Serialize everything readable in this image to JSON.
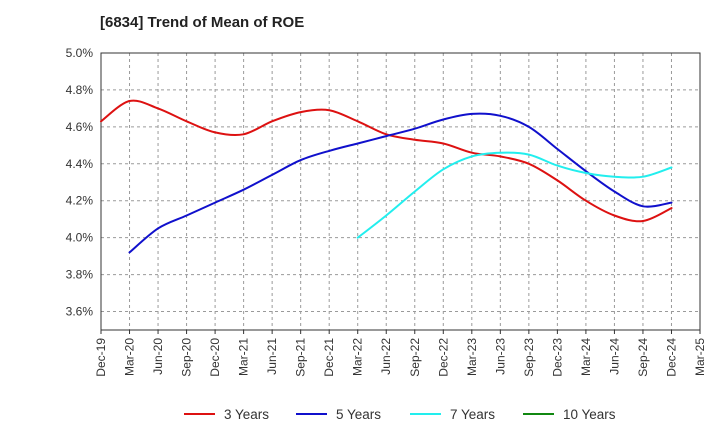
{
  "chart_data": {
    "type": "line",
    "title": "[6834]  Trend of Mean of ROE",
    "xlabel": "",
    "ylabel": "",
    "x_ticks": [
      "Dec-19",
      "Mar-20",
      "Jun-20",
      "Sep-20",
      "Dec-20",
      "Mar-21",
      "Jun-21",
      "Sep-21",
      "Dec-21",
      "Mar-22",
      "Jun-22",
      "Sep-22",
      "Dec-22",
      "Mar-23",
      "Jun-23",
      "Sep-23",
      "Dec-23",
      "Mar-24",
      "Jun-24",
      "Sep-24",
      "Dec-24",
      "Mar-25"
    ],
    "y_ticks": [
      "3.6%",
      "3.8%",
      "4.0%",
      "4.2%",
      "4.4%",
      "4.6%",
      "4.8%",
      "5.0%"
    ],
    "ylim": [
      3.5,
      5.0
    ],
    "grid": true,
    "legend_position": "bottom",
    "series": [
      {
        "name": "3 Years",
        "color": "#dd1111",
        "x": [
          "Dec-19",
          "Mar-20",
          "Jun-20",
          "Sep-20",
          "Dec-20",
          "Mar-21",
          "Jun-21",
          "Sep-21",
          "Dec-21",
          "Mar-22",
          "Jun-22",
          "Sep-22",
          "Dec-22",
          "Mar-23",
          "Jun-23",
          "Sep-23",
          "Dec-23",
          "Mar-24",
          "Jun-24",
          "Sep-24",
          "Dec-24"
        ],
        "values": [
          4.63,
          4.74,
          4.7,
          4.63,
          4.57,
          4.56,
          4.63,
          4.68,
          4.69,
          4.63,
          4.56,
          4.53,
          4.51,
          4.46,
          4.44,
          4.4,
          4.31,
          4.2,
          4.12,
          4.09,
          4.16
        ]
      },
      {
        "name": "5 Years",
        "color": "#1010cc",
        "x": [
          "Mar-20",
          "Jun-20",
          "Sep-20",
          "Dec-20",
          "Mar-21",
          "Jun-21",
          "Sep-21",
          "Dec-21",
          "Mar-22",
          "Jun-22",
          "Sep-22",
          "Dec-22",
          "Mar-23",
          "Jun-23",
          "Sep-23",
          "Dec-23",
          "Mar-24",
          "Jun-24",
          "Sep-24",
          "Dec-24"
        ],
        "values": [
          3.92,
          4.05,
          4.12,
          4.19,
          4.26,
          4.34,
          4.42,
          4.47,
          4.51,
          4.55,
          4.59,
          4.64,
          4.67,
          4.66,
          4.6,
          4.48,
          4.36,
          4.25,
          4.17,
          4.19
        ]
      },
      {
        "name": "7 Years",
        "color": "#22eeee",
        "x": [
          "Mar-22",
          "Jun-22",
          "Sep-22",
          "Dec-22",
          "Mar-23",
          "Jun-23",
          "Sep-23",
          "Dec-23",
          "Mar-24",
          "Jun-24",
          "Sep-24",
          "Dec-24"
        ],
        "values": [
          4.0,
          4.12,
          4.25,
          4.37,
          4.44,
          4.46,
          4.45,
          4.39,
          4.35,
          4.33,
          4.33,
          4.38
        ]
      },
      {
        "name": "10 Years",
        "color": "#118811",
        "x": [],
        "values": []
      }
    ]
  }
}
